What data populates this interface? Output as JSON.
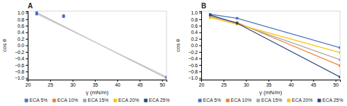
{
  "chart_data": [
    {
      "type": "scatter",
      "title": "A",
      "xlabel": "γ (mN/m)",
      "ylabel": "cos θ",
      "series": [
        {
          "type": "line",
          "color": "#b0b0b0",
          "x": [
            22,
            51
          ],
          "values": [
            1.0,
            -1.0
          ]
        },
        {
          "type": "line",
          "color": "#d0d0d0",
          "x": [
            22,
            51
          ],
          "values": [
            0.96,
            -0.96
          ]
        },
        {
          "type": "scatter",
          "color": "#4472C4",
          "marker": "square",
          "x": [
            22,
            22,
            28,
            28,
            51
          ],
          "values": [
            1.0,
            0.96,
            0.91,
            0.88,
            -0.98
          ]
        }
      ],
      "legend_entries": [
        {
          "name": "ECA 5%",
          "color": "#4472C4"
        },
        {
          "name": "ECA 10%",
          "color": "#ED7D31"
        },
        {
          "name": "ECA 15%",
          "color": "#A5A5A5"
        },
        {
          "name": "ECA 20%",
          "color": "#FFC000"
        },
        {
          "name": "ECA 25%",
          "color": "#264478"
        }
      ],
      "legend": "bottom",
      "grid": false,
      "xlim": [
        20,
        51
      ],
      "ylim": [
        -1.05,
        1.05
      ],
      "xticks": [
        20,
        25,
        30,
        35,
        40,
        45,
        50
      ],
      "yticks": [
        {
          "value": -1.0,
          "label": "−1.0"
        },
        {
          "value": -0.8,
          "label": "−0.8"
        },
        {
          "value": -0.6,
          "label": "−0.6"
        },
        {
          "value": -0.4,
          "label": "−0.4"
        },
        {
          "value": -0.2,
          "label": "−0.2"
        },
        {
          "value": 0.0,
          "label": "0.0"
        },
        0.2,
        0.4,
        0.6,
        0.8,
        {
          "value": 1.0,
          "label": "1.0"
        }
      ]
    },
    {
      "type": "line",
      "title": "B",
      "marker": "square",
      "xlabel": "γ (mN/m)",
      "ylabel": "cos θ",
      "series": [
        {
          "name": "ECA 5%",
          "color": "#4472C4",
          "x": [
            22,
            28,
            51
          ],
          "values": [
            0.95,
            0.83,
            -0.07
          ]
        },
        {
          "name": "ECA 10%",
          "color": "#ED7D31",
          "x": [
            22,
            28,
            51
          ],
          "values": [
            0.88,
            0.7,
            -0.62
          ]
        },
        {
          "name": "ECA 15%",
          "color": "#A5A5A5",
          "x": [
            22,
            28,
            51
          ],
          "values": [
            0.9,
            0.67,
            -0.44
          ]
        },
        {
          "name": "ECA 20%",
          "color": "#FFC000",
          "x": [
            22,
            28,
            51
          ],
          "values": [
            0.85,
            0.65,
            -0.22
          ]
        },
        {
          "name": "ECA 25%",
          "color": "#264478",
          "x": [
            22,
            28,
            51
          ],
          "values": [
            0.93,
            0.68,
            -0.97
          ]
        }
      ],
      "legend": "bottom",
      "grid": false,
      "xlim": [
        20,
        51
      ],
      "ylim": [
        -1.05,
        1.05
      ],
      "xticks": [
        20,
        25,
        30,
        35,
        40,
        45,
        50
      ],
      "yticks": [
        {
          "value": -1.0,
          "label": "−1.0"
        },
        {
          "value": -0.8,
          "label": "−0.8"
        },
        {
          "value": -0.6,
          "label": "−0.6"
        },
        {
          "value": -0.4,
          "label": "−0.4"
        },
        {
          "value": -0.2,
          "label": "−0.2"
        },
        {
          "value": 0.0,
          "label": "0.0"
        },
        0.2,
        0.4,
        0.6,
        0.8,
        {
          "value": 1.0,
          "label": "1.0"
        }
      ]
    }
  ]
}
